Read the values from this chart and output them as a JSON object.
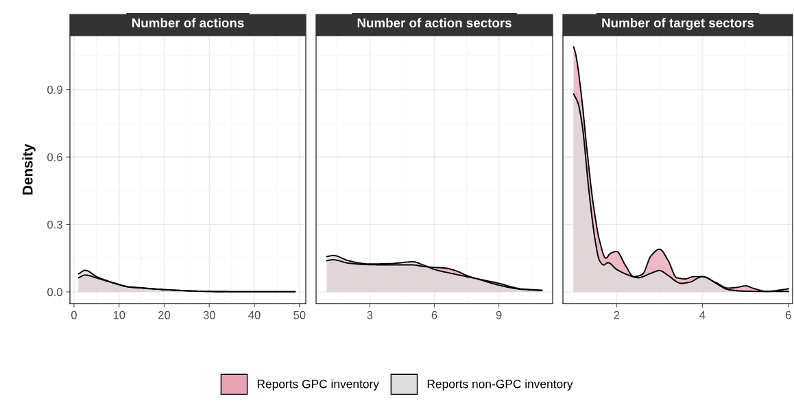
{
  "chart_data": [
    {
      "type": "area",
      "title": "Number of actions",
      "ylabel": "Density",
      "xlim": [
        -0.9,
        51.4
      ],
      "xticks": [
        0,
        10,
        20,
        30,
        40,
        50
      ],
      "ylim": [
        -0.052,
        1.14
      ],
      "yticks": [
        {
          "value": 0,
          "label": "0.0"
        },
        0.3,
        0.6,
        0.9
      ],
      "grid": true,
      "legend": "bottom",
      "series": [
        {
          "name": "Reports GPC inventory",
          "color": "#e8a3b5",
          "x": [
            1,
            2.5,
            5,
            7,
            10,
            12,
            15,
            20,
            25,
            30,
            35,
            40,
            45,
            49
          ],
          "values": [
            0.063,
            0.075,
            0.062,
            0.05,
            0.032,
            0.022,
            0.017,
            0.01,
            0.005,
            0.002,
            0.001,
            0.001,
            0.001,
            0.001
          ]
        },
        {
          "name": "Reports non-GPC inventory",
          "color": "#dddddd",
          "x": [
            1,
            2.5,
            5,
            7,
            10,
            12,
            15,
            20,
            25,
            30,
            35,
            40,
            45,
            49
          ],
          "values": [
            0.08,
            0.096,
            0.068,
            0.052,
            0.033,
            0.023,
            0.018,
            0.01,
            0.005,
            0.002,
            0.001,
            0.001,
            0.001,
            0.001
          ]
        }
      ]
    },
    {
      "type": "area",
      "title": "Number of action sectors",
      "xlim": [
        0.5,
        11.5
      ],
      "xticks": [
        3,
        6,
        9
      ],
      "ylim": [
        -0.052,
        1.14
      ],
      "yticks": [
        0,
        0.3,
        0.6,
        0.9
      ],
      "grid": true,
      "tick_labels": "x",
      "series": [
        {
          "name": "Reports GPC inventory",
          "color": "#e8a3b5",
          "x": [
            1,
            1.3,
            2,
            3,
            4,
            5,
            5.5,
            6,
            6.5,
            7,
            7.5,
            8,
            9,
            10,
            11
          ],
          "values": [
            0.139,
            0.143,
            0.128,
            0.121,
            0.12,
            0.12,
            0.113,
            0.109,
            0.106,
            0.094,
            0.073,
            0.058,
            0.03,
            0.012,
            0.006
          ]
        },
        {
          "name": "Reports non-GPC inventory",
          "color": "#dddddd",
          "x": [
            1,
            1.3,
            2,
            3,
            4,
            5,
            5.5,
            6,
            7,
            8,
            9,
            10,
            11
          ],
          "values": [
            0.157,
            0.162,
            0.139,
            0.124,
            0.126,
            0.134,
            0.119,
            0.1,
            0.078,
            0.058,
            0.038,
            0.014,
            0.007
          ]
        }
      ]
    },
    {
      "type": "area",
      "title": "Number of target sectors",
      "xlim": [
        0.75,
        6.1
      ],
      "xticks": [
        2,
        4,
        6
      ],
      "ylim": [
        -0.052,
        1.14
      ],
      "yticks": [
        0,
        0.3,
        0.6,
        0.9
      ],
      "grid": true,
      "tick_labels": "x",
      "series": [
        {
          "name": "Reports GPC inventory",
          "color": "#e8a3b5",
          "x": [
            1,
            1.05,
            1.2,
            1.3,
            1.45,
            1.6,
            1.75,
            1.85,
            2,
            2.2,
            2.4,
            2.6,
            2.8,
            3,
            3.2,
            3.4,
            3.6,
            3.8,
            4,
            4.3,
            4.6,
            4.8,
            5,
            5.2,
            5.5,
            5.8,
            6
          ],
          "values": [
            1.09,
            1.055,
            0.84,
            0.65,
            0.4,
            0.23,
            0.15,
            0.17,
            0.18,
            0.12,
            0.068,
            0.078,
            0.16,
            0.19,
            0.14,
            0.063,
            0.058,
            0.068,
            0.068,
            0.043,
            0.017,
            0.02,
            0.027,
            0.015,
            0.002,
            0.008,
            0.014
          ]
        },
        {
          "name": "Reports non-GPC inventory",
          "color": "#dddddd",
          "x": [
            1,
            1.1,
            1.2,
            1.35,
            1.5,
            1.6,
            1.7,
            1.8,
            2,
            2.3,
            2.5,
            2.8,
            3,
            3.2,
            3.5,
            3.7,
            4,
            4.3,
            4.6,
            5,
            5.5,
            6
          ],
          "values": [
            0.88,
            0.84,
            0.74,
            0.46,
            0.23,
            0.14,
            0.12,
            0.13,
            0.1,
            0.073,
            0.063,
            0.083,
            0.095,
            0.073,
            0.038,
            0.043,
            0.068,
            0.04,
            0.01,
            0.003,
            0.002,
            0.002
          ]
        }
      ]
    }
  ]
}
